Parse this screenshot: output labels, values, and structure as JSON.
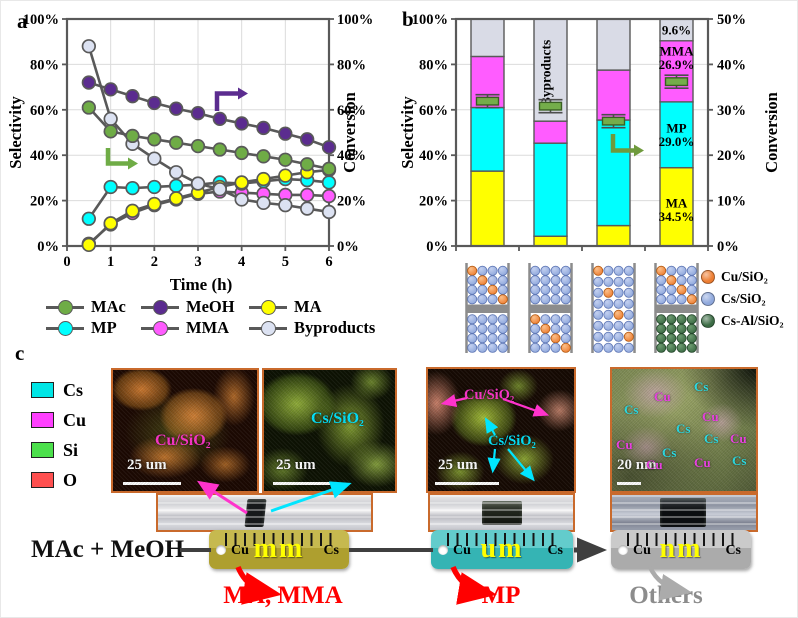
{
  "panels": {
    "a": "a",
    "b": "b",
    "c": "c"
  },
  "chart_data": [
    {
      "type": "line",
      "panel": "a",
      "xlabel": "Time (h)",
      "ylabel_left": "Selectivity",
      "ylabel_right": "Conversion",
      "xlim": [
        0,
        6
      ],
      "ylim": [
        0,
        100
      ],
      "x_tick_values": [
        0,
        1,
        2,
        3,
        4,
        5,
        6
      ],
      "x_tick_labels": [
        "0",
        "1",
        "2",
        "3",
        "4",
        "5",
        "6"
      ],
      "y_tick_values": [
        0,
        20,
        40,
        60,
        80,
        100
      ],
      "y_tick_labels": [
        "0%",
        "20%",
        "40%",
        "60%",
        "80%",
        "100%"
      ],
      "x": [
        0.5,
        1,
        1.5,
        2,
        2.5,
        3,
        3.5,
        4,
        4.5,
        5,
        5.5,
        6
      ],
      "series": [
        {
          "name": "MMA",
          "axis": "left",
          "color": "#FF5CFF",
          "values": [
            1,
            9.5,
            14.5,
            18,
            20.5,
            23,
            24,
            23.5,
            23,
            22.5,
            22.5,
            22
          ]
        },
        {
          "name": "MP",
          "axis": "left",
          "color": "#00FFFF",
          "values": [
            12,
            26,
            25.5,
            26,
            26.5,
            27,
            28,
            27.5,
            28.5,
            29.5,
            29,
            28
          ]
        },
        {
          "name": "MA",
          "axis": "left",
          "color": "#FFFF00",
          "values": [
            0.5,
            10,
            15.5,
            18.5,
            21,
            23.5,
            26,
            28,
            29.5,
            31,
            32.5,
            33.5
          ]
        },
        {
          "name": "Byproducts",
          "axis": "left",
          "color": "#DCE2F2",
          "values": [
            88,
            56,
            45,
            38.5,
            32.5,
            27.5,
            25,
            20.5,
            19,
            18,
            16.5,
            15
          ]
        },
        {
          "name": "MAc",
          "axis": "left",
          "color": "#6FAC46",
          "values": [
            61,
            50.5,
            48.5,
            47,
            45.5,
            44,
            42.5,
            41,
            39.5,
            38,
            36,
            34
          ]
        },
        {
          "name": "MeOH",
          "axis": "right",
          "color": "#5B2C8F",
          "values": [
            72,
            69,
            66,
            63,
            60.5,
            58.5,
            56,
            54,
            52,
            49.5,
            47,
            43.5
          ]
        }
      ],
      "legend_order": [
        "MAc",
        "MeOH",
        "MA",
        "MP",
        "MMA",
        "Byproducts"
      ]
    },
    {
      "type": "stacked_bar",
      "panel": "b",
      "ylabel_left": "Selectivity",
      "ylabel_right": "Conversion",
      "ylim_left": [
        0,
        100
      ],
      "ylim_right": [
        0,
        50
      ],
      "y_tick_values_left": [
        0,
        20,
        40,
        60,
        80,
        100
      ],
      "y_tick_labels_left": [
        "0%",
        "20%",
        "40%",
        "60%",
        "80%",
        "100%"
      ],
      "y_tick_values_right": [
        0,
        10,
        20,
        30,
        40,
        50
      ],
      "y_tick_labels_right": [
        "0%",
        "10%",
        "20%",
        "30%",
        "40%",
        "50%"
      ],
      "segments_order": [
        "MA",
        "MP",
        "MMA",
        "Byproducts"
      ],
      "segment_colors": {
        "MA": "#FFFF00",
        "MP": "#00FFFF",
        "MMA": "#FF5CFF",
        "Byproducts": "#D9DBE6"
      },
      "conversion_marker_color": "#74AD4A",
      "bars": [
        {
          "values": {
            "MA": 33,
            "MP": 28,
            "MMA": 22.5,
            "Byproducts": 16.5
          },
          "conversion": 31.9
        },
        {
          "values": {
            "MA": 4.3,
            "MP": 41,
            "MMA": 9.7,
            "Byproducts": 45
          },
          "conversion": 30.8
        },
        {
          "values": {
            "MA": 9,
            "MP": 46.5,
            "MMA": 22,
            "Byproducts": 22.5
          },
          "conversion": 27.5
        },
        {
          "values": {
            "MA": 34.5,
            "MP": 29,
            "MMA": 26.9,
            "Byproducts": 9.6
          },
          "conversion": 36.2
        }
      ],
      "inbar_byproducts_label": "Byproducts",
      "bar4_labels": [
        {
          "text": "9.6%",
          "v": 95.2
        },
        {
          "text": "MMA",
          "v": 86
        },
        {
          "text": "26.9%",
          "v": 80
        },
        {
          "text": "MP",
          "v": 52
        },
        {
          "text": "29.0%",
          "v": 46
        },
        {
          "text": "MA",
          "v": 19
        },
        {
          "text": "34.5%",
          "v": 13
        }
      ]
    }
  ],
  "panel_b": {
    "catalyst_legend": [
      {
        "label": "Cu/SiO₂",
        "color": "#ED7D31"
      },
      {
        "label": "Cs/SiO₂",
        "color": "#8FA8DC"
      },
      {
        "label": "Cs-Al/SiO₂",
        "color": "#3B6B44"
      }
    ],
    "catalyst_columns": [
      {
        "rows": [
          "OPPP",
          "POPP",
          "PPOP",
          "PPPO",
          "SEP",
          "PPPP",
          "PPPP",
          "PPPP",
          "PPPP"
        ]
      },
      {
        "rows": [
          "PPPP",
          "PPPP",
          "PPPP",
          "PPPP",
          "SEP",
          "OPPP",
          "POPP",
          "PPOP",
          "PPPO"
        ]
      },
      {
        "rows": [
          "OPPP",
          "PPPP",
          "POPP",
          "PPPP",
          "PPOP",
          "PPPP",
          "PPPO",
          "PPPP"
        ]
      },
      {
        "rows": [
          "OPPP",
          "POPP",
          "PPOP",
          "PPPO",
          "SEP",
          "GGGG",
          "GGGG",
          "GGGG",
          "GGGG"
        ]
      }
    ]
  },
  "panel_c": {
    "eds_legend": [
      {
        "element": "Cs",
        "color": "#00E5E5"
      },
      {
        "element": "Cu",
        "color": "#FF40FF"
      },
      {
        "element": "Si",
        "color": "#4CE04C"
      },
      {
        "element": "O",
        "color": "#FF5050"
      }
    ],
    "images": [
      {
        "label": "Cu/SiO₂",
        "label_color": "#FF33CC",
        "scale": "25 um"
      },
      {
        "label": "Cs/SiO₂",
        "label_color": "#00E5FF",
        "scale": "25 um"
      },
      {
        "labels": [
          {
            "text": "Cu/SiO₂",
            "color": "#FF33CC"
          },
          {
            "text": "Cs/SiO₂",
            "color": "#00E5FF"
          }
        ],
        "scale": "25 um"
      },
      {
        "scale": "20 nm",
        "scatter": [
          {
            "text": "Cu",
            "color": "#F040E8",
            "x": 42,
            "y": 20
          },
          {
            "text": "Cs",
            "color": "#29E0E8",
            "x": 82,
            "y": 10
          },
          {
            "text": "Cs",
            "color": "#29E0E8",
            "x": 12,
            "y": 33
          },
          {
            "text": "Cu",
            "color": "#F040E8",
            "x": 90,
            "y": 40
          },
          {
            "text": "Cs",
            "color": "#29E0E8",
            "x": 64,
            "y": 52
          },
          {
            "text": "Cs",
            "color": "#29E0E8",
            "x": 92,
            "y": 62
          },
          {
            "text": "Cu",
            "color": "#F040E8",
            "x": 118,
            "y": 62
          },
          {
            "text": "Cu",
            "color": "#F040E8",
            "x": 4,
            "y": 68
          },
          {
            "text": "Cs",
            "color": "#29E0E8",
            "x": 50,
            "y": 76
          },
          {
            "text": "Cu",
            "color": "#F040E8",
            "x": 34,
            "y": 88
          },
          {
            "text": "Cu",
            "color": "#F040E8",
            "x": 82,
            "y": 86
          },
          {
            "text": "Cs",
            "color": "#29E0E8",
            "x": 120,
            "y": 84
          }
        ]
      }
    ],
    "reaction": {
      "reactants": "MAc + MeOH",
      "rulers": [
        {
          "left": "Cu",
          "size": "mm",
          "right": "Cs",
          "color": "#AE9F2F",
          "color_light": "#C6B94F",
          "product": "MA, MMA",
          "product_color": "#FF0000"
        },
        {
          "left": "Cu",
          "size": "um",
          "right": "Cs",
          "color": "#35B4B4",
          "color_light": "#63CCCC",
          "product": "MP",
          "product_color": "#FF0000"
        },
        {
          "left": "Cu",
          "size": "nm",
          "right": "Cs",
          "color": "#ABABAB",
          "color_light": "#CACACA",
          "product": "Others",
          "product_color": "#8C8C8C"
        }
      ]
    }
  }
}
